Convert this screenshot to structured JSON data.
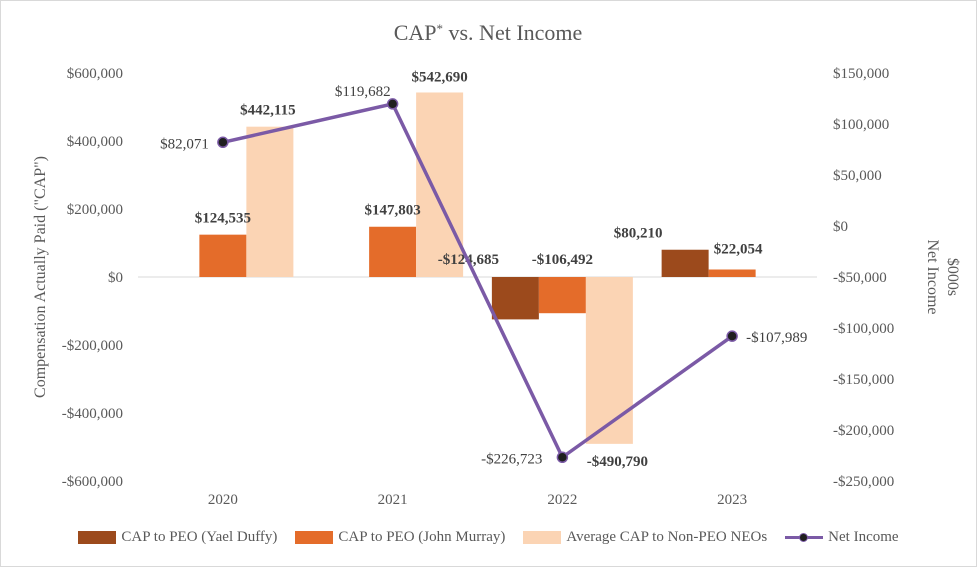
{
  "chart_data": {
    "type": "bar",
    "title": "CAP",
    "title_superscript": "*",
    "title_suffix": " vs. Net Income",
    "categories": [
      "2020",
      "2021",
      "2022",
      "2023"
    ],
    "ylabel": "Compensation Actually Paid (\"CAP\")",
    "y2label_line1": "Net Income",
    "y2label_line2": "$000s",
    "ylim": [
      -600000,
      600000
    ],
    "y_ticks": [
      600000,
      400000,
      200000,
      0,
      -200000,
      -400000,
      -600000
    ],
    "y_tick_labels": [
      "$600,000",
      "$400,000",
      "$200,000",
      "$0",
      "-$200,000",
      "-$400,000",
      "-$600,000"
    ],
    "y2lim": [
      -250000,
      150000
    ],
    "y2_ticks": [
      150000,
      100000,
      50000,
      0,
      -50000,
      -100000,
      -150000,
      -200000,
      -250000
    ],
    "y2_tick_labels": [
      "$150,000",
      "$100,000",
      "$50,000",
      "$0",
      "-$50,000",
      "-$100,000",
      "-$150,000",
      "-$200,000",
      "-$250,000"
    ],
    "series": [
      {
        "name": "CAP to PEO (Yael Duffy)",
        "color": "#9c4a1c",
        "values": [
          null,
          null,
          -124685,
          80210
        ],
        "labels": [
          null,
          null,
          "-$124,685",
          "$80,210"
        ]
      },
      {
        "name": "CAP to PEO (John Murray)",
        "color": "#e46c2a",
        "values": [
          124535,
          147803,
          -106492,
          22054
        ],
        "labels": [
          "$124,535",
          "$147,803",
          "-$106,492",
          "$22,054"
        ]
      },
      {
        "name": "Average CAP to Non-PEO NEOs",
        "color": "#fbd4b4",
        "values": [
          442115,
          542690,
          -490790,
          null
        ],
        "labels": [
          "$442,115",
          "$542,690",
          "-$490,790",
          null
        ]
      }
    ],
    "line_series": {
      "name": "Net Income",
      "color": "#7b5aa6",
      "marker_color": "#1f1f1f",
      "axis": "secondary",
      "values": [
        82071,
        119682,
        -226723,
        -107989
      ],
      "labels": [
        "$82,071",
        "$119,682",
        "-$226,723",
        "-$107,989"
      ]
    },
    "legend_position": "bottom",
    "grid": false
  }
}
